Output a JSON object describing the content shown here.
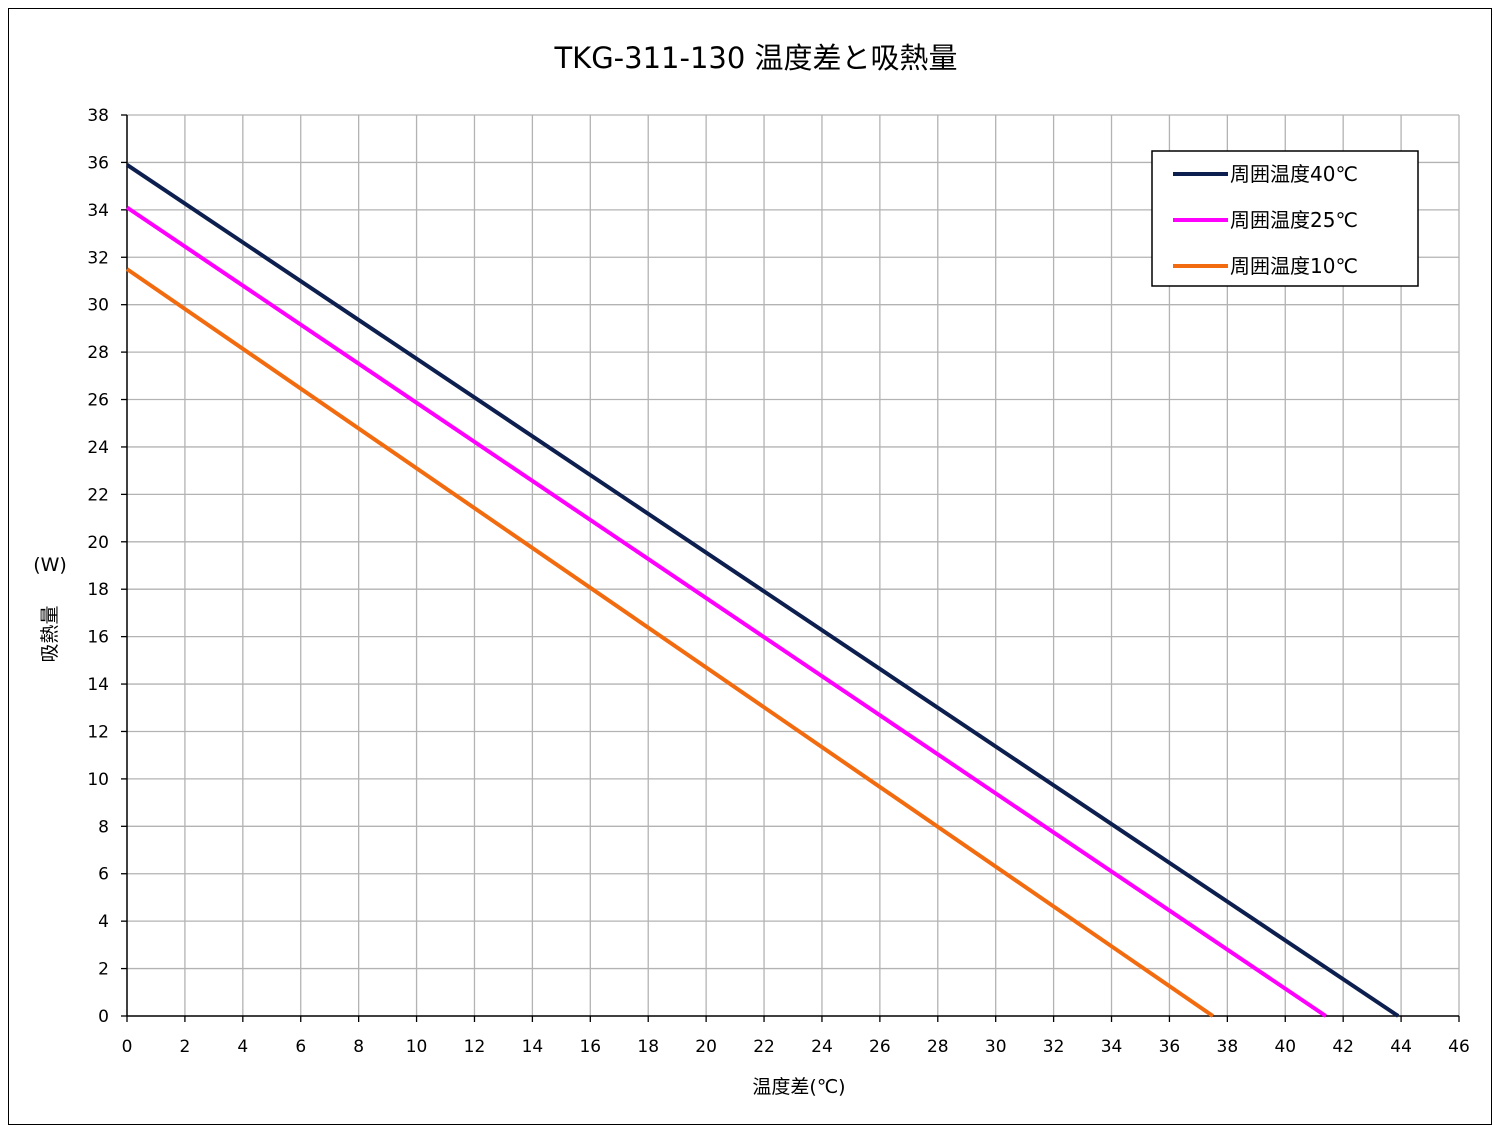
{
  "chart_data": {
    "type": "line",
    "title": "TKG-311-130  温度差と吸熱量",
    "xlabel": "温度差(℃)",
    "ylabel": "吸熱量",
    "ylabel_unit": "(W)",
    "xlim": [
      0,
      46
    ],
    "ylim": [
      0,
      38
    ],
    "x_ticks": [
      0,
      2,
      4,
      6,
      8,
      10,
      12,
      14,
      16,
      18,
      20,
      22,
      24,
      26,
      28,
      30,
      32,
      34,
      36,
      38,
      40,
      42,
      44,
      46
    ],
    "y_ticks": [
      0,
      2,
      4,
      6,
      8,
      10,
      12,
      14,
      16,
      18,
      20,
      22,
      24,
      26,
      28,
      30,
      32,
      34,
      36,
      38
    ],
    "grid": true,
    "legend_position": "top-right",
    "series": [
      {
        "name": "周囲温度40℃",
        "color": "#0d1f4f",
        "x": [
          0,
          43.9
        ],
        "y": [
          35.9,
          0
        ]
      },
      {
        "name": "周囲温度25℃",
        "color": "#ff00ff",
        "x": [
          0,
          41.4
        ],
        "y": [
          34.1,
          0
        ]
      },
      {
        "name": "周囲温度10℃",
        "color": "#f26b0f",
        "x": [
          0,
          37.5
        ],
        "y": [
          31.5,
          0
        ]
      }
    ]
  }
}
